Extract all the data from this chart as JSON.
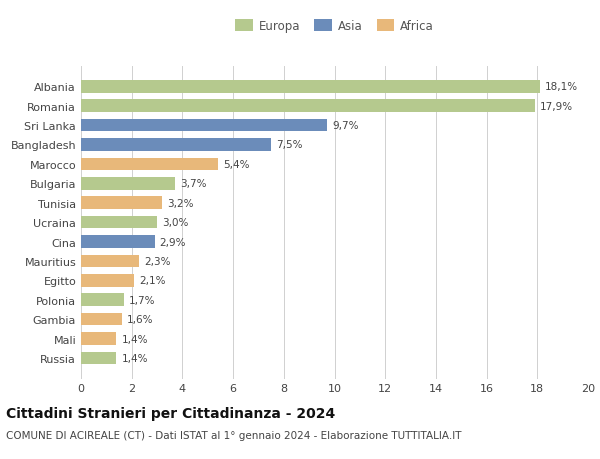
{
  "countries": [
    "Russia",
    "Mali",
    "Gambia",
    "Polonia",
    "Egitto",
    "Mauritius",
    "Cina",
    "Ucraina",
    "Tunisia",
    "Bulgaria",
    "Marocco",
    "Bangladesh",
    "Sri Lanka",
    "Romania",
    "Albania"
  ],
  "values": [
    1.4,
    1.4,
    1.6,
    1.7,
    2.1,
    2.3,
    2.9,
    3.0,
    3.2,
    3.7,
    5.4,
    7.5,
    9.7,
    17.9,
    18.1
  ],
  "labels": [
    "1,4%",
    "1,4%",
    "1,6%",
    "1,7%",
    "2,1%",
    "2,3%",
    "2,9%",
    "3,0%",
    "3,2%",
    "3,7%",
    "5,4%",
    "7,5%",
    "9,7%",
    "17,9%",
    "18,1%"
  ],
  "continents": [
    "Europa",
    "Africa",
    "Africa",
    "Europa",
    "Africa",
    "Africa",
    "Asia",
    "Europa",
    "Africa",
    "Europa",
    "Africa",
    "Asia",
    "Asia",
    "Europa",
    "Europa"
  ],
  "colors": {
    "Europa": "#b5c98e",
    "Asia": "#6b8cba",
    "Africa": "#e8b87a"
  },
  "xlim": [
    0,
    20
  ],
  "xticks": [
    0,
    2,
    4,
    6,
    8,
    10,
    12,
    14,
    16,
    18,
    20
  ],
  "title": "Cittadini Stranieri per Cittadinanza - 2024",
  "subtitle": "COMUNE DI ACIREALE (CT) - Dati ISTAT al 1° gennaio 2024 - Elaborazione TUTTITALIA.IT",
  "background_color": "#ffffff",
  "grid_color": "#d0d0d0",
  "bar_height": 0.65,
  "title_fontsize": 10,
  "subtitle_fontsize": 7.5,
  "label_fontsize": 7.5,
  "ytick_fontsize": 8,
  "xtick_fontsize": 8,
  "legend_fontsize": 8.5
}
